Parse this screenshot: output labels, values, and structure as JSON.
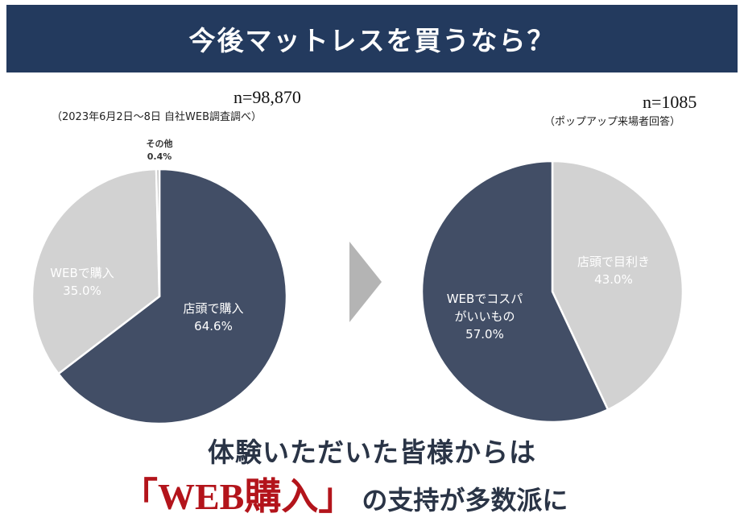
{
  "header": {
    "title": "今後マットレスを買うなら？"
  },
  "left": {
    "n": "n=98,870",
    "note": "（2023年6月2日〜8日 自社WEB調査調べ）"
  },
  "right": {
    "n": "n=1085",
    "note": "（ポップアップ来場者回答）"
  },
  "bottom": {
    "line1": "体験いただいた皆様からは",
    "highlight": "「WEB購入」",
    "rest": "の支持が多数派に"
  },
  "colors": {
    "navy": "#233a5e",
    "slate": "#424e66",
    "light_gray": "#d2d2d2",
    "red": "#b3141b"
  },
  "chart_data": [
    {
      "type": "pie",
      "slices": [
        {
          "label": "店頭で購入",
          "value": 64.6,
          "value_label": "64.6%",
          "color": "#424e66",
          "text_color": "#ffffff"
        },
        {
          "label": "WEBで購入",
          "value": 35.0,
          "value_label": "35.0%",
          "color": "#d2d2d2",
          "text_color": "#ffffff"
        },
        {
          "label": "その他",
          "value": 0.4,
          "value_label": "0.4%",
          "color": "#b9b9b9",
          "text_color": "#333333"
        }
      ]
    },
    {
      "type": "pie",
      "slices": [
        {
          "label": "店頭で目利き",
          "value": 43.0,
          "value_label": "43.0%",
          "color": "#d2d2d2",
          "text_color": "#ffffff"
        },
        {
          "label": "WEBでコスパ|がいいもの",
          "value": 57.0,
          "value_label": "57.0%",
          "color": "#424e66",
          "text_color": "#ffffff"
        }
      ]
    }
  ]
}
